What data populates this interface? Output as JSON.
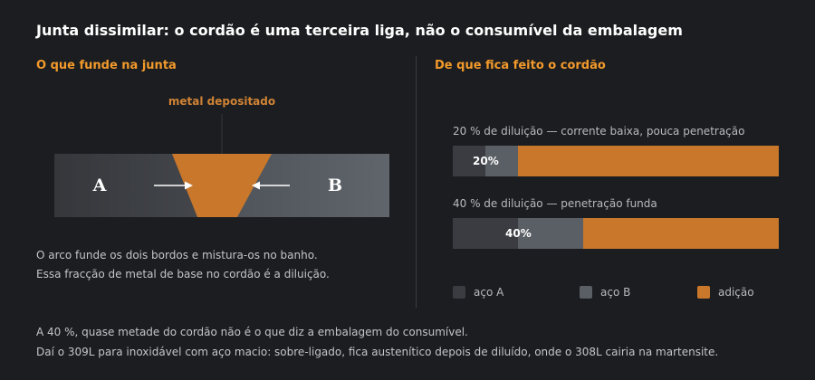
{
  "title": "Junta dissimilar: o cordão é uma terceira liga, não o consumível da embalagem",
  "left": {
    "heading": "O que funde na junta",
    "deposit_label": "metal depositado",
    "plate_a": "A",
    "plate_b": "B",
    "caption": [
      "O arco funde os dois bordos e mistura-os no banho.",
      "Essa fracção de metal de base no cordão é a diluição."
    ]
  },
  "right": {
    "heading": "De que fica feito o cordão",
    "bars": [
      {
        "label": "20 % de diluição — corrente baixa, pouca penetração",
        "dilution": 0.2,
        "pct_label": "20%"
      },
      {
        "label": "40 % de diluição — penetração funda",
        "dilution": 0.4,
        "pct_label": "40%"
      }
    ],
    "legend": [
      {
        "label": "aço A",
        "color": "#3a3c41"
      },
      {
        "label": "aço B",
        "color": "#5a5f66"
      },
      {
        "label": "adição",
        "color": "#c8772b"
      }
    ]
  },
  "footer": [
    "A 40 %, quase metade do cordão não é o que diz a embalagem do consumível.",
    "Daí o 309L para inoxidável com aço macio: sobre-ligado, fica austenítico depois de diluído, onde o 308L cairia na martensite."
  ],
  "colors": {
    "accent": "#f39a2b",
    "filler": "#c8772b",
    "steel_a": "#3a3c41",
    "steel_b": "#5a5f66"
  }
}
